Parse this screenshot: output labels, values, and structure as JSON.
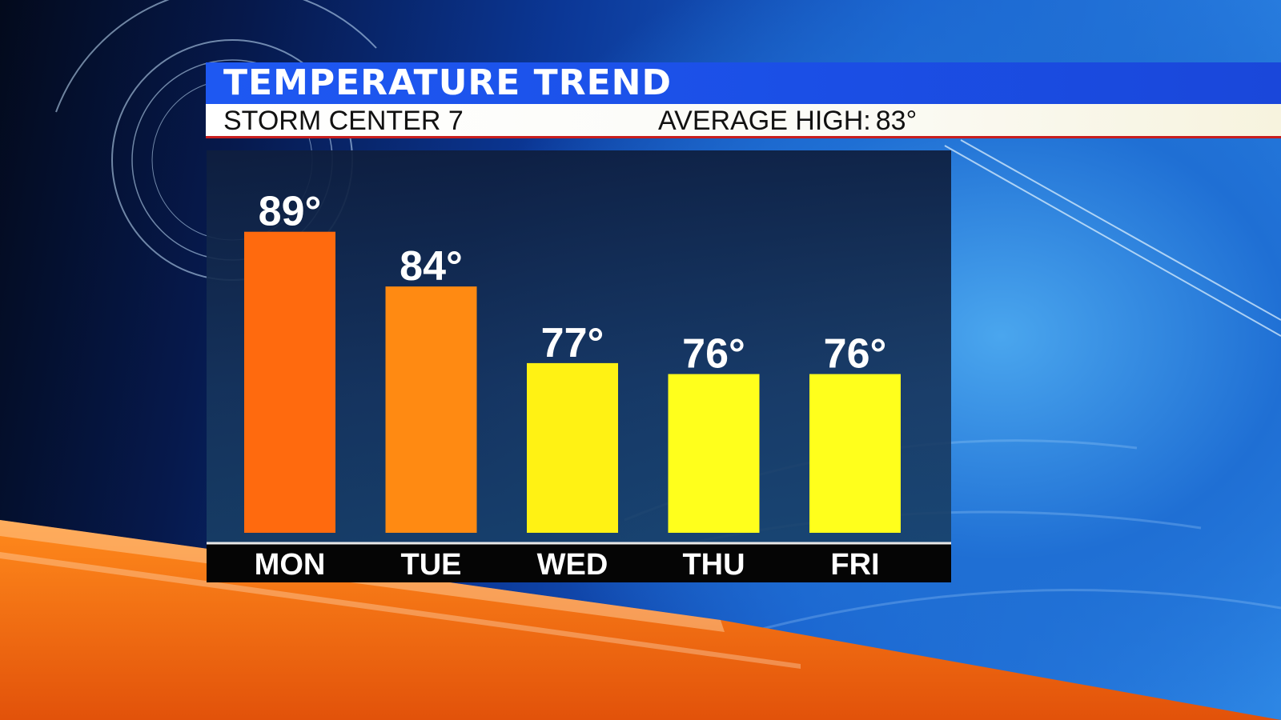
{
  "header": {
    "title": "TEMPERATURE TREND",
    "station": "STORM CENTER 7",
    "average_high_label": "AVERAGE HIGH:",
    "average_high_value": "83°"
  },
  "colors": {
    "title_bar": "#1e58f2",
    "hot_bar": "#ff6a0e",
    "warm_bar": "#ff8a12",
    "mild_bar": "#fff214",
    "cool_bar": "#ffff1c"
  },
  "chart_data": {
    "type": "bar",
    "categories": [
      "MON",
      "TUE",
      "WED",
      "THU",
      "FRI"
    ],
    "values": [
      89,
      84,
      77,
      76,
      76
    ],
    "value_labels": [
      "89°",
      "84°",
      "77°",
      "76°",
      "76°"
    ],
    "bar_colors": [
      "#ff6a0e",
      "#ff8a12",
      "#fff214",
      "#ffff1c",
      "#ffff1c"
    ],
    "title": "TEMPERATURE TREND",
    "xlabel": "",
    "ylabel": "",
    "ylim": [
      61.5,
      90
    ],
    "grid": false,
    "legend": "none"
  }
}
